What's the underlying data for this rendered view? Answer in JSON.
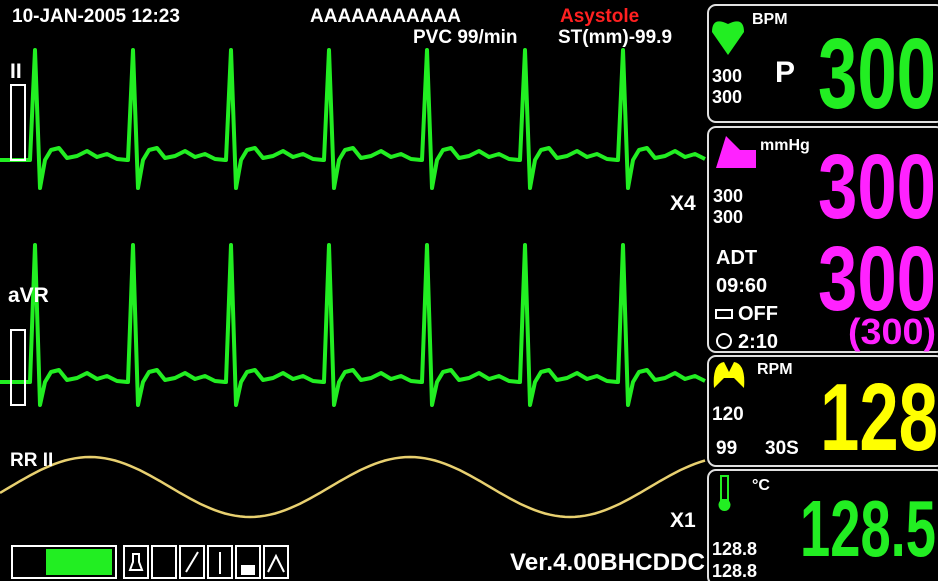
{
  "header": {
    "datetime": "10-JAN-2005 12:23",
    "patient": "AAAAAAAAAAA",
    "alarm": "Asystole",
    "pvc": "PVC 99/min",
    "st": "ST(mm)-99.9"
  },
  "waves": {
    "lead1": "II",
    "scale1": "X4",
    "lead2": "aVR",
    "resp": "RR II",
    "scale2": "X1"
  },
  "footer": {
    "version": "Ver.4.00BHCDDC"
  },
  "hr": {
    "unit": "BPM",
    "upper": "300",
    "lower": "300",
    "source": "P",
    "value": "300"
  },
  "nibp": {
    "unit": "mmHg",
    "upper": "300",
    "lower": "300",
    "mode": "ADT",
    "time": "09:60",
    "auto": "OFF",
    "interval": "2:10",
    "sys": "300",
    "dia": "300",
    "mean": "(300)"
  },
  "resp": {
    "unit": "RPM",
    "upper": "120",
    "lower": "99",
    "apnea": "30S",
    "value": "128"
  },
  "temp": {
    "unit": "°C",
    "upper": "128.8",
    "lower": "128.8",
    "value": "128.5"
  }
}
